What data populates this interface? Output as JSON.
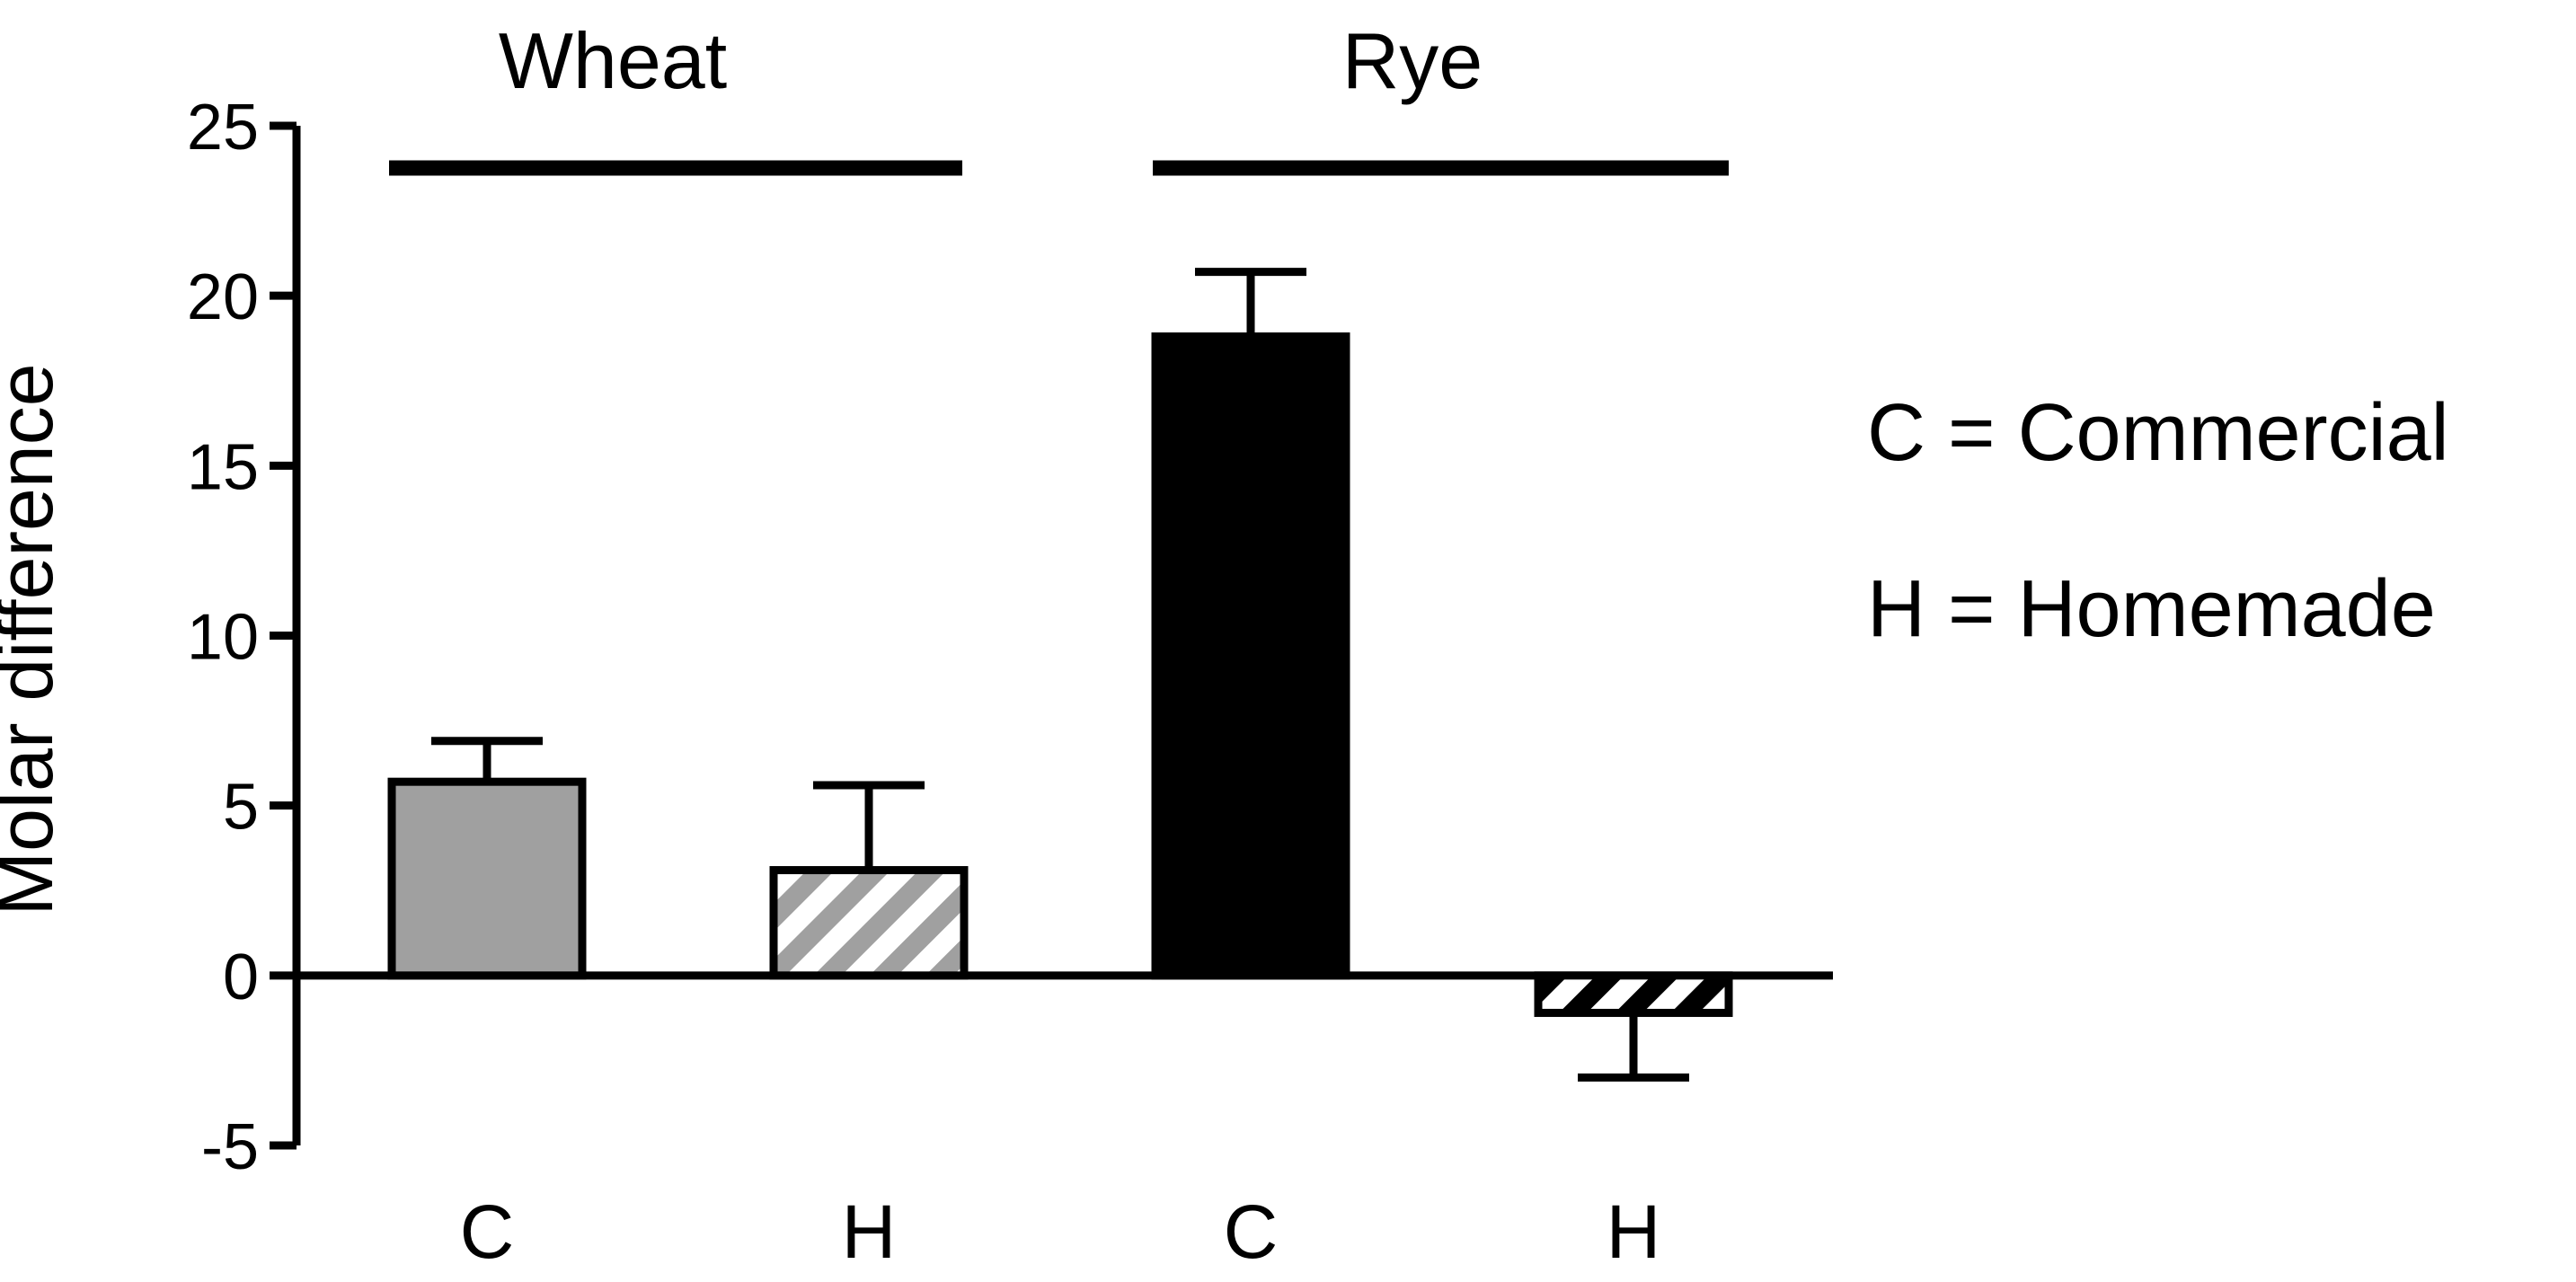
{
  "chart_data": {
    "type": "bar",
    "ylabel": "Molar difference",
    "xlabel": "",
    "ylim": [
      -5,
      25
    ],
    "yticks": [
      25,
      20,
      15,
      10,
      5,
      0,
      -5
    ],
    "grid": false,
    "categories": [
      "C",
      "H",
      "C",
      "H"
    ],
    "groups": [
      {
        "label": "Wheat",
        "categories": [
          "C",
          "H"
        ]
      },
      {
        "label": "Rye",
        "categories": [
          "C",
          "H"
        ]
      }
    ],
    "series": [
      {
        "values": [
          5.7,
          3.1,
          18.8,
          -1.1
        ],
        "errors": [
          1.2,
          2.5,
          1.9,
          1.9
        ],
        "fills": [
          "solid-gray",
          "hatched-gray",
          "solid-black",
          "hatched-black"
        ]
      }
    ],
    "legend": {
      "placement": "right",
      "entries": [
        "C = Commercial",
        "H = Homemade"
      ]
    },
    "colors": {
      "gray": "#a0a0a0",
      "black": "#000000",
      "white": "#ffffff"
    }
  }
}
